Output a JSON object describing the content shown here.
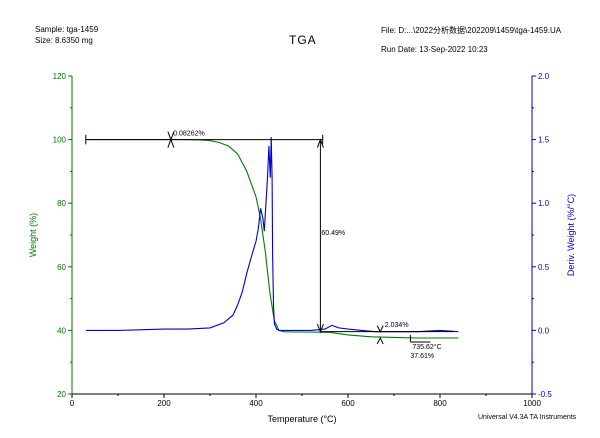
{
  "header": {
    "sample": "Sample: tga-1459",
    "size": "Size:  8.6350 mg",
    "file": "File: D:...\\2022分析数据\\202209\\1459\\tga-1459.UA",
    "run_date": "Run Date: 13-Sep-2022 10:23",
    "title": "TGA"
  },
  "footer": {
    "software": "Universal V4.3A TA Instruments"
  },
  "colors": {
    "weight": "#007a00",
    "deriv": "#0000cc",
    "annot": "#000000"
  },
  "chart_data": {
    "type": "line",
    "title": "TGA",
    "xlabel": "Temperature (°C)",
    "ylabel": "Weight (%)",
    "y2label": "Deriv. Weight (%/°C)",
    "xlim": [
      0,
      1000
    ],
    "ylim": [
      20,
      120
    ],
    "y2lim": [
      -0.5,
      2.0
    ],
    "xticks": [
      0,
      200,
      400,
      600,
      800,
      1000
    ],
    "yticks": [
      20,
      40,
      60,
      80,
      100,
      120
    ],
    "y2ticks": [
      -0.5,
      0.0,
      0.5,
      1.0,
      1.5,
      2.0
    ],
    "y2ticklabels": [
      "-0.5",
      "0.0",
      "0.5",
      "1.0",
      "1.5",
      "2.0"
    ],
    "grid": false,
    "series": [
      {
        "axis": "left",
        "x": [
          30,
          100,
          200,
          240,
          280,
          300,
          320,
          340,
          360,
          380,
          400,
          410,
          420,
          430,
          440,
          450,
          460,
          480,
          500,
          560,
          600,
          650,
          700,
          750,
          800,
          840
        ],
        "y": [
          100,
          100,
          100,
          100,
          99.9,
          99.7,
          99.1,
          98.0,
          95.5,
          90.0,
          82.0,
          75.0,
          65.0,
          52.0,
          43.0,
          40.0,
          39.6,
          39.5,
          39.5,
          39.4,
          38.6,
          38.0,
          37.8,
          37.6,
          37.6,
          37.6
        ]
      },
      {
        "axis": "right",
        "x": [
          30,
          100,
          200,
          250,
          300,
          330,
          350,
          360,
          370,
          380,
          390,
          400,
          405,
          410,
          415,
          418,
          420,
          425,
          428,
          431,
          433,
          435,
          436,
          438,
          440,
          445,
          450,
          460,
          480,
          520,
          550,
          565,
          580,
          600,
          630,
          660,
          700,
          750,
          800,
          840
        ],
        "y": [
          0.0,
          0.0,
          0.01,
          0.01,
          0.02,
          0.06,
          0.12,
          0.2,
          0.3,
          0.45,
          0.58,
          0.7,
          0.8,
          0.96,
          0.88,
          0.78,
          0.9,
          1.2,
          1.45,
          1.2,
          1.52,
          1.2,
          0.6,
          0.2,
          0.05,
          0.01,
          0.0,
          0.0,
          0.0,
          0.0,
          0.01,
          0.04,
          0.02,
          0.01,
          0.0,
          -0.01,
          -0.01,
          -0.01,
          0.0,
          -0.01
        ]
      }
    ],
    "annotations": [
      {
        "text": "0.08262%"
      },
      {
        "text": "60.49%"
      },
      {
        "text": "2.034%"
      },
      {
        "text": "735.62°C"
      },
      {
        "text": "37.61%"
      }
    ]
  }
}
